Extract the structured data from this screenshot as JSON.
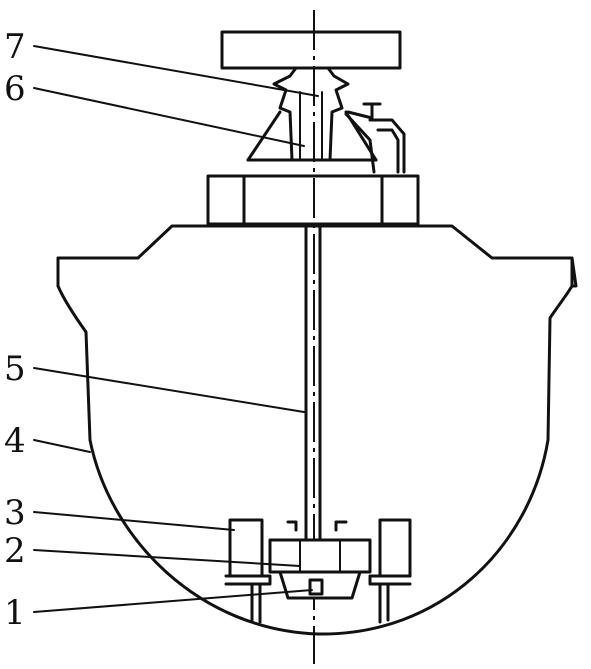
{
  "labels": {
    "l1": "1",
    "l2": "2",
    "l3": "3",
    "l4": "4",
    "l5": "5",
    "l6": "6",
    "l7": "7"
  },
  "colors": {
    "ink": "#111111",
    "paper": "#ffffff"
  }
}
